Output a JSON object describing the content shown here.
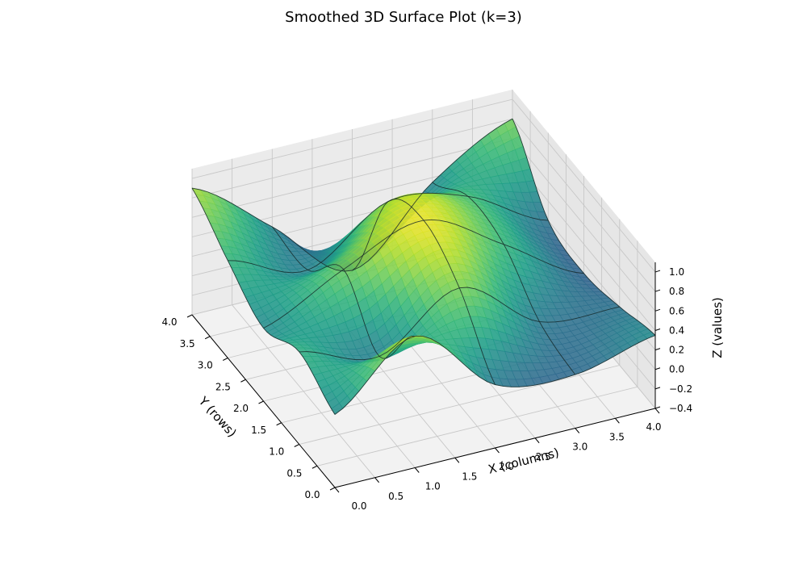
{
  "chart_data": {
    "type": "surface3d",
    "title": "Smoothed 3D Surface Plot (k=3)",
    "xlabel": "X (columns)",
    "ylabel": "Y (rows)",
    "zlabel": "Z (values)",
    "xlim": [
      0,
      4
    ],
    "ylim": [
      0,
      4
    ],
    "zlim": [
      -0.4,
      1.1
    ],
    "xticks": [
      "0.0",
      "0.5",
      "1.0",
      "1.5",
      "2.0",
      "2.5",
      "3.0",
      "3.5",
      "4.0"
    ],
    "yticks": [
      "0.0",
      "0.5",
      "1.0",
      "1.5",
      "2.0",
      "2.5",
      "3.0",
      "3.5",
      "4.0"
    ],
    "zticks": [
      "−0.4",
      "−0.2",
      "0.0",
      "0.2",
      "0.4",
      "0.6",
      "0.8",
      "1.0"
    ],
    "colormap": "viridis",
    "grid": true,
    "z_grid": [
      [
        0.35,
        0.95,
        0.25,
        0.15,
        0.35
      ],
      [
        0.55,
        0.3,
        0.8,
        0.25,
        0.2
      ],
      [
        0.35,
        0.75,
        1.05,
        0.6,
        0.1
      ],
      [
        0.6,
        0.3,
        0.8,
        0.65,
        0.2
      ],
      [
        0.9,
        0.3,
        -0.35,
        0.35,
        0.8
      ]
    ]
  }
}
